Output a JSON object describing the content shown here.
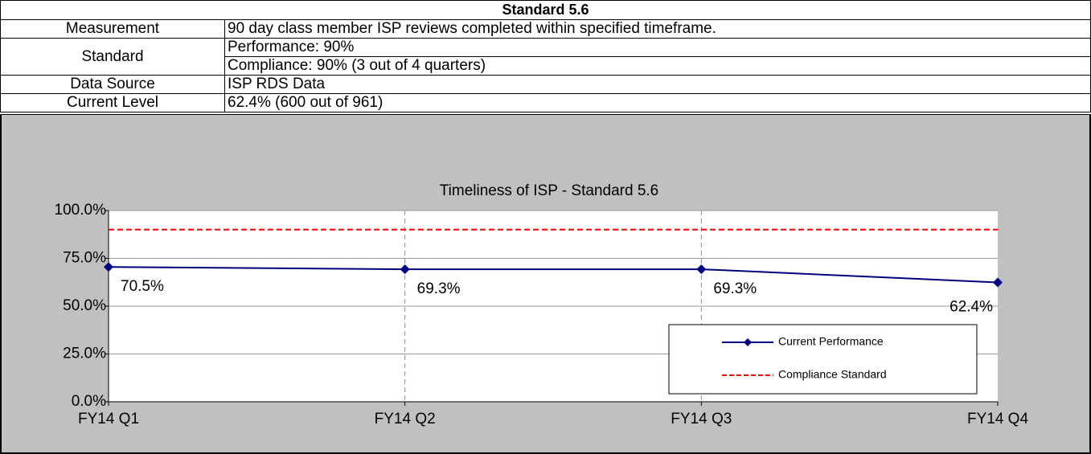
{
  "table": {
    "title": "Standard 5.6",
    "rows": [
      {
        "label": "Measurement",
        "values": [
          "90 day class member ISP reviews completed within specified timeframe."
        ]
      },
      {
        "label": "Standard",
        "values": [
          "Performance: 90%",
          "Compliance: 90% (3 out of 4 quarters)"
        ]
      },
      {
        "label": "Data Source",
        "values": [
          "ISP RDS Data"
        ]
      },
      {
        "label": "Current Level",
        "values": [
          "62.4% (600 out of 961)"
        ]
      }
    ]
  },
  "chart_data": {
    "type": "line",
    "title": "Timeliness of ISP - Standard 5.6",
    "categories": [
      "FY14 Q1",
      "FY14 Q2",
      "FY14 Q3",
      "FY14 Q4"
    ],
    "series": [
      {
        "name": "Current Performance",
        "color": "#000080",
        "values": [
          70.5,
          69.3,
          69.3,
          62.4
        ],
        "value_labels": [
          "70.5%",
          "69.3%",
          "69.3%",
          "62.4%"
        ],
        "marker": "diamond"
      },
      {
        "name": "Compliance Standard",
        "color": "#ff0000",
        "values": [
          90,
          90,
          90,
          90
        ],
        "dashed": true
      }
    ],
    "ylim": [
      0,
      100
    ],
    "yticks": [
      {
        "value": 0,
        "label": "0.0%"
      },
      {
        "value": 25,
        "label": "25.0%"
      },
      {
        "value": 50,
        "label": "50.0%"
      },
      {
        "value": 75,
        "label": "75.0%"
      },
      {
        "value": 100,
        "label": "100.0%"
      }
    ],
    "grid": true,
    "legend": "lower right"
  }
}
